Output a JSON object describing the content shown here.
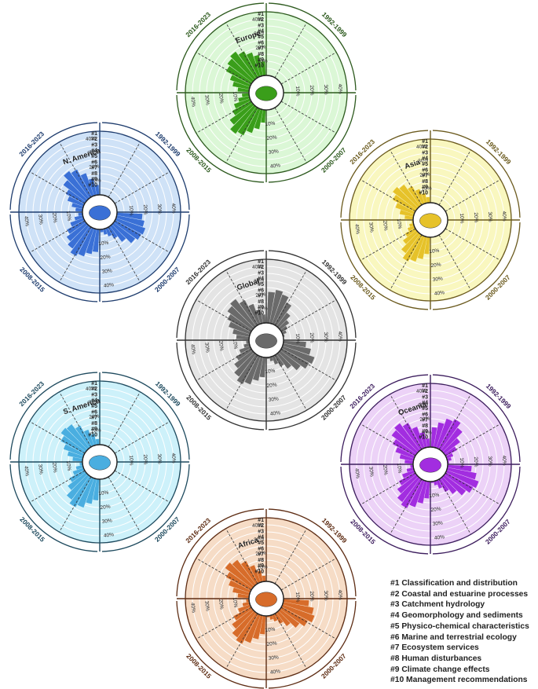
{
  "figure": {
    "period_labels": [
      "1992-1999",
      "2000-2007",
      "2008-2015",
      "2016-2023"
    ],
    "percent_ticks": [
      "10%",
      "20%",
      "30%",
      "40%"
    ],
    "category_ids": [
      "#1",
      "#2",
      "#3",
      "#4",
      "#5",
      "#6",
      "#7",
      "#8",
      "#9",
      "#10"
    ]
  },
  "legend": {
    "items": [
      "#1 Classification and distribution",
      "#2 Coastal and estuarine processes",
      "#3 Catchment hydrology",
      "#4 Geomorphology and sediments",
      "#5 Physico-chemical characteristics",
      "#6 Marine and terrestrial ecology",
      "#7 Ecosystem services",
      "#8 Human disturbances",
      "#9 Climate change effects",
      "#10 Management recommendations"
    ]
  },
  "chart_data": [
    {
      "type": "radial-bar",
      "title": "Europe",
      "colors": {
        "fill": "#dbf7d6",
        "bar": "#3a9e1a",
        "frame": "#2d5a1e"
      },
      "periods": [
        "1992-1999",
        "2000-2007",
        "2008-2015",
        "2016-2023"
      ],
      "categories": [
        "#1",
        "#2",
        "#3",
        "#4",
        "#5",
        "#6",
        "#7",
        "#8",
        "#9",
        "#10"
      ],
      "rlim": [
        0,
        45
      ],
      "series": [
        {
          "period": "1992-1999",
          "values": [
            0,
            0,
            0,
            0,
            0,
            0,
            0,
            0,
            0,
            0
          ]
        },
        {
          "period": "2000-2007",
          "values": [
            0,
            0,
            0,
            0,
            0,
            0,
            0,
            0,
            0,
            0
          ]
        },
        {
          "period": "2008-2015",
          "values": [
            9,
            14,
            18,
            22,
            24,
            20,
            15,
            12,
            8,
            5
          ]
        },
        {
          "period": "2016-2023",
          "values": [
            8,
            12,
            15,
            20,
            22,
            24,
            21,
            18,
            15,
            10
          ]
        }
      ]
    },
    {
      "type": "radial-bar",
      "title": "N. America",
      "colors": {
        "fill": "#cfe2f7",
        "bar": "#3a70d6",
        "frame": "#1f3d6e"
      },
      "periods": [
        "1992-1999",
        "2000-2007",
        "2008-2015",
        "2016-2023"
      ],
      "categories": [
        "#1",
        "#2",
        "#3",
        "#4",
        "#5",
        "#6",
        "#7",
        "#8",
        "#9",
        "#10"
      ],
      "rlim": [
        0,
        45
      ],
      "series": [
        {
          "period": "1992-1999",
          "values": [
            0,
            0,
            0,
            0,
            0,
            0,
            0,
            0,
            0,
            0
          ]
        },
        {
          "period": "2000-2007",
          "values": [
            18,
            20,
            22,
            21,
            19,
            14,
            9,
            6,
            4,
            2
          ]
        },
        {
          "period": "2008-2015",
          "values": [
            16,
            18,
            21,
            23,
            20,
            17,
            14,
            10,
            6,
            3
          ]
        },
        {
          "period": "2016-2023",
          "values": [
            5,
            8,
            12,
            15,
            20,
            24,
            22,
            17,
            12,
            7
          ]
        }
      ]
    },
    {
      "type": "radial-bar",
      "title": "Asia",
      "colors": {
        "fill": "#f9f7bf",
        "bar": "#e6c22a",
        "frame": "#6b5a1e"
      },
      "periods": [
        "1992-1999",
        "2000-2007",
        "2008-2015",
        "2016-2023"
      ],
      "categories": [
        "#1",
        "#2",
        "#3",
        "#4",
        "#5",
        "#6",
        "#7",
        "#8",
        "#9",
        "#10"
      ],
      "rlim": [
        0,
        45
      ],
      "series": [
        {
          "period": "1992-1999",
          "values": [
            0,
            0,
            0,
            0,
            0,
            0,
            0,
            0,
            0,
            0
          ]
        },
        {
          "period": "2000-2007",
          "values": [
            0,
            0,
            0,
            0,
            0,
            0,
            0,
            0,
            0,
            0
          ]
        },
        {
          "period": "2008-2015",
          "values": [
            12,
            16,
            19,
            21,
            17,
            12,
            8,
            5,
            3,
            1
          ]
        },
        {
          "period": "2016-2023",
          "values": [
            6,
            10,
            14,
            18,
            21,
            19,
            15,
            11,
            7,
            4
          ]
        }
      ]
    },
    {
      "type": "radial-bar",
      "title": "Global",
      "colors": {
        "fill": "#e4e4e4",
        "bar": "#6a6a6a",
        "frame": "#333333"
      },
      "periods": [
        "1992-1999",
        "2000-2007",
        "2008-2015",
        "2016-2023"
      ],
      "categories": [
        "#1",
        "#2",
        "#3",
        "#4",
        "#5",
        "#6",
        "#7",
        "#8",
        "#9",
        "#10"
      ],
      "rlim": [
        0,
        45
      ],
      "series": [
        {
          "period": "1992-1999",
          "values": [
            22,
            24,
            22,
            18,
            12,
            8,
            5,
            3,
            1,
            0
          ]
        },
        {
          "period": "2000-2007",
          "values": [
            16,
            20,
            24,
            22,
            18,
            13,
            9,
            6,
            3,
            1
          ]
        },
        {
          "period": "2008-2015",
          "values": [
            14,
            17,
            21,
            23,
            20,
            16,
            12,
            8,
            4,
            2
          ]
        },
        {
          "period": "2016-2023",
          "values": [
            9,
            12,
            16,
            19,
            22,
            24,
            20,
            15,
            10,
            6
          ]
        }
      ]
    },
    {
      "type": "radial-bar",
      "title": "S. America",
      "colors": {
        "fill": "#cdf1fa",
        "bar": "#4aaee0",
        "frame": "#1e4a5e"
      },
      "periods": [
        "1992-1999",
        "2000-2007",
        "2008-2015",
        "2016-2023"
      ],
      "categories": [
        "#1",
        "#2",
        "#3",
        "#4",
        "#5",
        "#6",
        "#7",
        "#8",
        "#9",
        "#10"
      ],
      "rlim": [
        0,
        45
      ],
      "series": [
        {
          "period": "1992-1999",
          "values": [
            0,
            0,
            0,
            0,
            0,
            0,
            0,
            0,
            0,
            0
          ]
        },
        {
          "period": "2000-2007",
          "values": [
            0,
            0,
            0,
            0,
            0,
            0,
            0,
            0,
            0,
            0
          ]
        },
        {
          "period": "2008-2015",
          "values": [
            15,
            18,
            22,
            24,
            21,
            16,
            12,
            8,
            5,
            2
          ]
        },
        {
          "period": "2016-2023",
          "values": [
            7,
            11,
            15,
            19,
            22,
            21,
            17,
            12,
            8,
            4
          ]
        }
      ]
    },
    {
      "type": "radial-bar",
      "title": "Oceania",
      "colors": {
        "fill": "#ecd2f7",
        "bar": "#a22de0",
        "frame": "#3d1e5e"
      },
      "periods": [
        "1992-1999",
        "2000-2007",
        "2008-2015",
        "2016-2023"
      ],
      "categories": [
        "#1",
        "#2",
        "#3",
        "#4",
        "#5",
        "#6",
        "#7",
        "#8",
        "#9",
        "#10"
      ],
      "rlim": [
        0,
        45
      ],
      "series": [
        {
          "period": "1992-1999",
          "values": [
            14,
            18,
            22,
            24,
            20,
            14,
            9,
            5,
            3,
            1
          ]
        },
        {
          "period": "2000-2007",
          "values": [
            17,
            21,
            24,
            22,
            19,
            14,
            10,
            6,
            3,
            1
          ]
        },
        {
          "period": "2008-2015",
          "values": [
            12,
            16,
            20,
            23,
            21,
            17,
            13,
            9,
            5,
            2
          ]
        },
        {
          "period": "2016-2023",
          "values": [
            6,
            10,
            14,
            18,
            22,
            24,
            21,
            16,
            11,
            6
          ]
        }
      ]
    },
    {
      "type": "radial-bar",
      "title": "Africa",
      "colors": {
        "fill": "#f6dcc6",
        "bar": "#d76c2a",
        "frame": "#5e2d14"
      },
      "periods": [
        "1992-1999",
        "2000-2007",
        "2008-2015",
        "2016-2023"
      ],
      "categories": [
        "#1",
        "#2",
        "#3",
        "#4",
        "#5",
        "#6",
        "#7",
        "#8",
        "#9",
        "#10"
      ],
      "rlim": [
        0,
        45
      ],
      "series": [
        {
          "period": "1992-1999",
          "values": [
            0,
            0,
            0,
            0,
            0,
            0,
            0,
            0,
            0,
            0
          ]
        },
        {
          "period": "2000-2007",
          "values": [
            18,
            22,
            24,
            21,
            17,
            12,
            8,
            5,
            3,
            1
          ]
        },
        {
          "period": "2008-2015",
          "values": [
            13,
            17,
            21,
            24,
            22,
            18,
            14,
            9,
            5,
            2
          ]
        },
        {
          "period": "2016-2023",
          "values": [
            8,
            12,
            16,
            20,
            24,
            22,
            18,
            13,
            8,
            4
          ]
        }
      ]
    }
  ]
}
